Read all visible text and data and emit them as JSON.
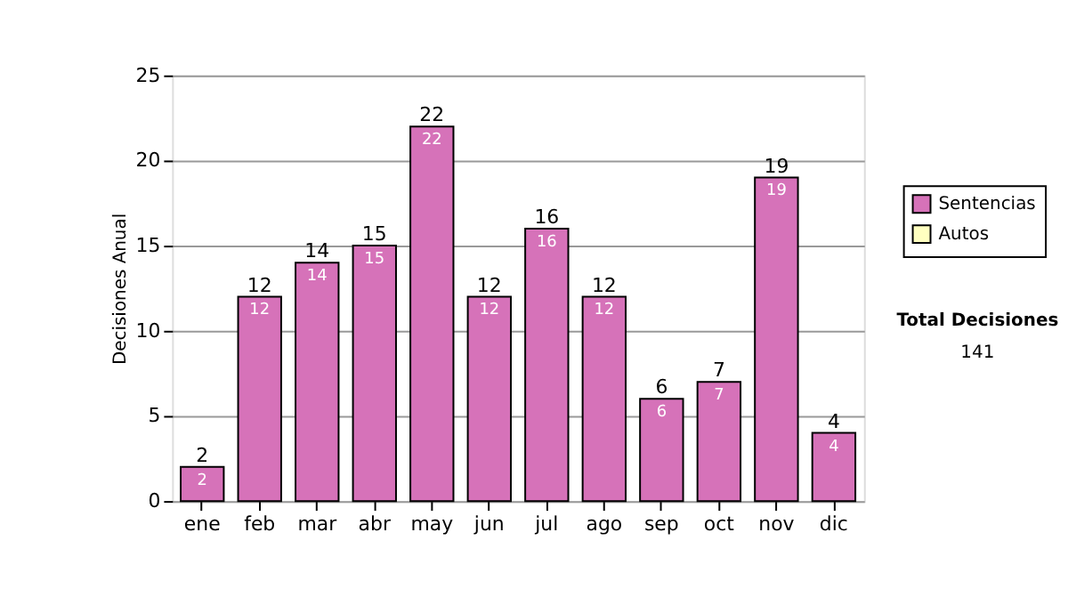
{
  "chart_data": {
    "type": "bar",
    "stacked": true,
    "ylabel": "Decisiones Anual",
    "categories": [
      "ene",
      "feb",
      "mar",
      "abr",
      "may",
      "jun",
      "jul",
      "ago",
      "sep",
      "oct",
      "nov",
      "dic"
    ],
    "series": [
      {
        "name": "Sentencias",
        "color": "#d672b9",
        "values": [
          2,
          12,
          14,
          15,
          22,
          12,
          16,
          12,
          6,
          7,
          19,
          4
        ],
        "value_labels": [
          "2",
          "12",
          "14",
          "15",
          "22",
          "12",
          "16",
          "12",
          "6",
          "7",
          "19",
          "4"
        ]
      },
      {
        "name": "Autos",
        "color": "#ffffc0",
        "values": [
          0,
          0,
          0,
          0,
          0,
          0,
          0,
          0,
          0,
          0,
          0,
          0
        ]
      }
    ],
    "totals": [
      "2",
      "12",
      "14",
      "15",
      "22",
      "12",
      "16",
      "12",
      "6",
      "7",
      "19",
      "4"
    ],
    "ylim": [
      0,
      25
    ],
    "yticks": [
      0,
      5,
      10,
      15,
      20,
      25
    ],
    "grid": "y",
    "legend": "right",
    "annotations": [
      "Total Decisiones",
      "141"
    ]
  }
}
